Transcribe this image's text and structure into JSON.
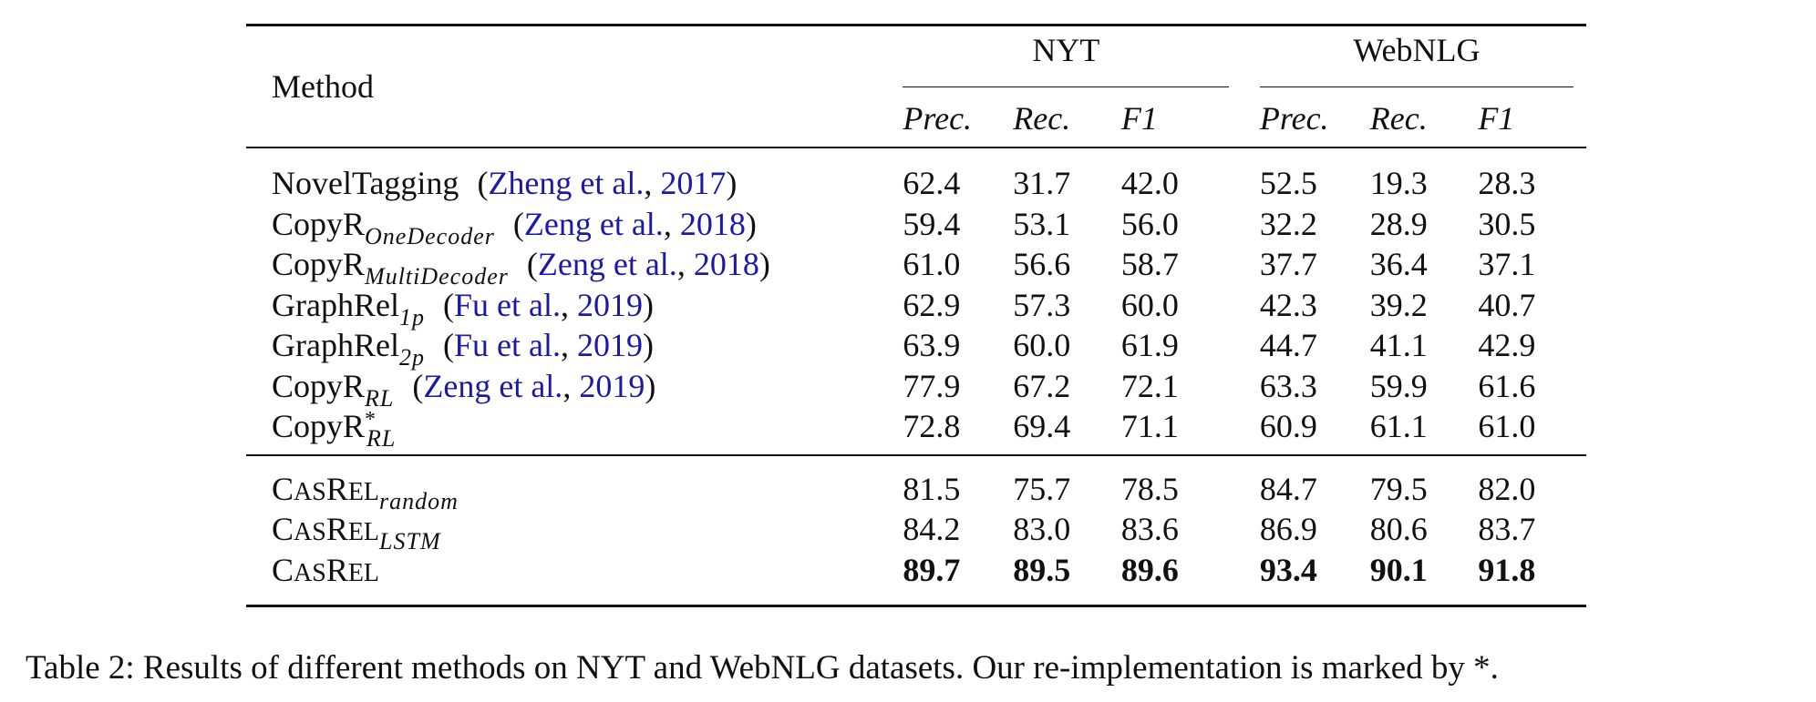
{
  "table": {
    "method_header": "Method",
    "groups": [
      "NYT",
      "WebNLG"
    ],
    "metrics": [
      "Prec.",
      "Rec.",
      "F1"
    ],
    "rows": [
      {
        "name": "NovelTagging",
        "sub": "",
        "sup": "",
        "cite_open": "(",
        "cite_author": "Zheng et al.",
        "cite_sep": ", ",
        "cite_year": "2017",
        "cite_close": ")",
        "values": [
          "62.4",
          "31.7",
          "42.0",
          "52.5",
          "19.3",
          "28.3"
        ]
      },
      {
        "name": "CopyR",
        "sub": "OneDecoder",
        "sup": "",
        "cite_open": "(",
        "cite_author": "Zeng et al.",
        "cite_sep": ", ",
        "cite_year": "2018",
        "cite_close": ")",
        "values": [
          "59.4",
          "53.1",
          "56.0",
          "32.2",
          "28.9",
          "30.5"
        ]
      },
      {
        "name": "CopyR",
        "sub": "MultiDecoder",
        "sup": "",
        "cite_open": "(",
        "cite_author": "Zeng et al.",
        "cite_sep": ", ",
        "cite_year": "2018",
        "cite_close": ")",
        "values": [
          "61.0",
          "56.6",
          "58.7",
          "37.7",
          "36.4",
          "37.1"
        ]
      },
      {
        "name": "GraphRel",
        "sub": "1p",
        "sup": "",
        "cite_open": "(",
        "cite_author": "Fu et al.",
        "cite_sep": ", ",
        "cite_year": "2019",
        "cite_close": ")",
        "values": [
          "62.9",
          "57.3",
          "60.0",
          "42.3",
          "39.2",
          "40.7"
        ]
      },
      {
        "name": "GraphRel",
        "sub": "2p",
        "sup": "",
        "cite_open": "(",
        "cite_author": "Fu et al.",
        "cite_sep": ", ",
        "cite_year": "2019",
        "cite_close": ")",
        "values": [
          "63.9",
          "60.0",
          "61.9",
          "44.7",
          "41.1",
          "42.9"
        ]
      },
      {
        "name": "CopyR",
        "sub": "RL",
        "sup": "",
        "cite_open": "(",
        "cite_author": "Zeng et al.",
        "cite_sep": ", ",
        "cite_year": "2019",
        "cite_close": ")",
        "values": [
          "77.9",
          "67.2",
          "72.1",
          "63.3",
          "59.9",
          "61.6"
        ]
      },
      {
        "name": "CopyR",
        "sub": "RL",
        "sup": "*",
        "cite_open": "",
        "cite_author": "",
        "cite_sep": "",
        "cite_year": "",
        "cite_close": "",
        "values": [
          "72.8",
          "69.4",
          "71.1",
          "60.9",
          "61.1",
          "61.0"
        ]
      }
    ],
    "casrel_rows": [
      {
        "name_c": "C",
        "name_asrel_small1": "AS",
        "name_r": "R",
        "name_el_small": "EL",
        "sub": "random",
        "values": [
          "81.5",
          "75.7",
          "78.5",
          "84.7",
          "79.5",
          "82.0"
        ],
        "bold": false
      },
      {
        "name_c": "C",
        "name_asrel_small1": "AS",
        "name_r": "R",
        "name_el_small": "EL",
        "sub": "LSTM",
        "values": [
          "84.2",
          "83.0",
          "83.6",
          "86.9",
          "80.6",
          "83.7"
        ],
        "bold": false
      },
      {
        "name_c": "C",
        "name_asrel_small1": "AS",
        "name_r": "R",
        "name_el_small": "EL",
        "sub": "",
        "values": [
          "89.7",
          "89.5",
          "89.6",
          "93.4",
          "90.1",
          "91.8"
        ],
        "bold": true
      }
    ]
  },
  "caption": "Table 2: Results of different methods on NYT and WebNLG datasets. Our re-implementation is marked by *.",
  "colors": {
    "citation": "#1a1aa6",
    "text": "#111111",
    "rules": "#111111"
  }
}
